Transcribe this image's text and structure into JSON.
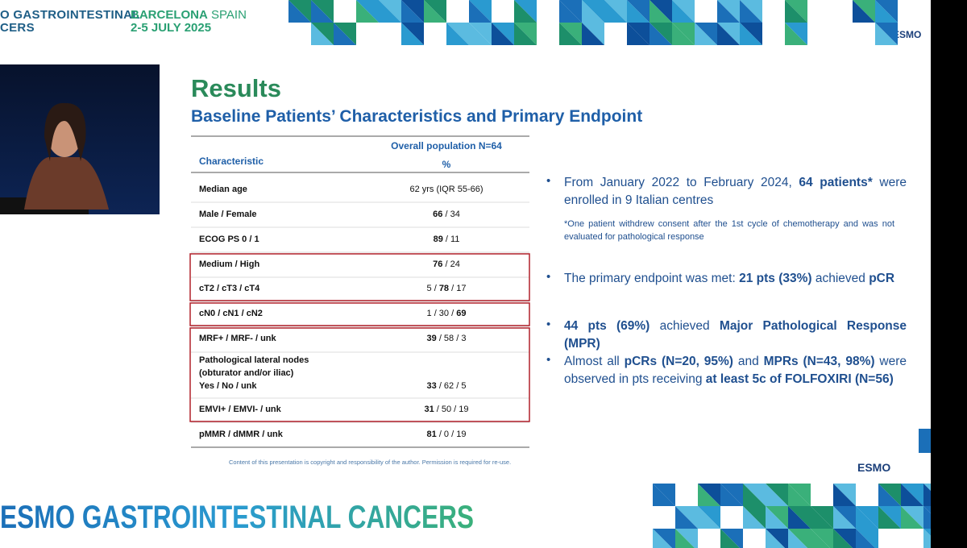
{
  "header": {
    "event_line1": "O GASTROINTESTINAL",
    "event_line2": "CERS",
    "city": [
      "BARCELONA",
      " SPAIN"
    ],
    "date": "2-5 JULY 2025",
    "logo": "ESMO"
  },
  "slide": {
    "title": "Results",
    "subtitle": "Baseline Patients’ Characteristics and Primary Endpoint",
    "table": {
      "col1_header": "Characteristic",
      "col2_header": "Overall population N=64",
      "col2_subheader": "%",
      "rows": [
        {
          "label": "Median age",
          "value": {
            "parts": [
              "62 yrs  (IQR 55-66)"
            ],
            "bold": []
          }
        },
        {
          "label": "Male / Female",
          "value": {
            "parts": [
              "66",
              " / 34"
            ],
            "bold": [
              0
            ]
          }
        },
        {
          "label": "ECOG PS 0 / 1",
          "value": {
            "parts": [
              "89",
              " / 11"
            ],
            "bold": [
              0
            ]
          }
        },
        {
          "label": "Medium / High",
          "value": {
            "parts": [
              "76",
              " / 24"
            ],
            "bold": [
              0
            ]
          }
        },
        {
          "label": "cT2 / cT3 / cT4",
          "value": {
            "parts": [
              "5 / ",
              "78",
              " / 17"
            ],
            "bold": [
              1
            ]
          }
        },
        {
          "label": "cN0 / cN1 / cN2",
          "value": {
            "parts": [
              "1 / 30 / ",
              "69"
            ],
            "bold": [
              1
            ]
          }
        },
        {
          "label": "MRF+ / MRF- / unk",
          "value": {
            "parts": [
              "39",
              " / 58 / 3"
            ],
            "bold": [
              0
            ]
          }
        },
        {
          "label": "Pathological lateral nodes (obturator and/or iliac)",
          "sublabel": "Yes / No / unk",
          "value": {
            "parts": [
              "33",
              " / 62 / 5"
            ],
            "bold": [
              0
            ]
          }
        },
        {
          "label": "EMVI+ / EMVI- / unk",
          "value": {
            "parts": [
              "31",
              " / 50 / 19"
            ],
            "bold": [
              0
            ]
          }
        },
        {
          "label": "pMMR / dMMR / unk",
          "value": {
            "parts": [
              "81",
              " / 0 / 19"
            ],
            "bold": [
              0
            ]
          }
        }
      ]
    },
    "copyright": "Content of this presentation is copyright and responsibility of the author. Permission is required for re-use.",
    "bullets": [
      {
        "parts": [
          "From January 2022 to February 2024, ",
          "64 patients*",
          " were enrolled in 9 Italian centres"
        ],
        "bold": [
          1
        ]
      },
      {
        "parts": [
          "The primary endpoint was met:  ",
          "21 pts (33%)",
          " achieved ",
          "pCR"
        ],
        "bold": [
          1,
          3
        ]
      },
      {
        "parts": [
          "44 pts (69%)",
          " achieved ",
          "Major Pathological Response (MPR)"
        ],
        "bold": [
          0,
          2
        ]
      },
      {
        "parts": [
          "Almost all ",
          "pCRs (N=20, 95%)",
          " and ",
          "MPRs (N=43, 98%)",
          " were observed in pts receiving ",
          "at least 5c of FOLFOXIRI (N=56)"
        ],
        "bold": [
          1,
          3,
          5
        ]
      }
    ],
    "footnote": "*One patient withdrew consent after the 1st cycle of chemotherapy and was not evaluated for pathological response",
    "logo": "ESMO"
  },
  "banner": "ESMO GASTROINTESTINAL CANCERS"
}
